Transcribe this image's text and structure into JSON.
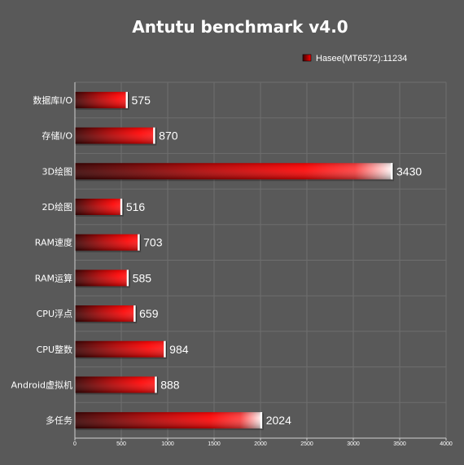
{
  "colors": {
    "background": "#595959",
    "grid": "#6e6e6e",
    "axis": "#cfcfcf",
    "bar_dark": "#3a0000",
    "bar_mid": "#ff0000",
    "bar_light": "#ffffff",
    "text": "#ffffff"
  },
  "chart_data": {
    "type": "bar",
    "orientation": "horizontal",
    "title": "Antutu benchmark v4.0",
    "legend": {
      "entries": [
        "Hasee(MT6572):11234"
      ],
      "placement": "top-right"
    },
    "categories": [
      "数据库I/O",
      "存储I/O",
      "3D绘图",
      "2D绘图",
      "RAM速度",
      "RAM运算",
      "CPU浮点",
      "CPU整数",
      "Android虚拟机",
      "多任务"
    ],
    "series": [
      {
        "name": "Hasee(MT6572):11234",
        "values": [
          575,
          870,
          3430,
          516,
          703,
          585,
          659,
          984,
          888,
          2024
        ]
      }
    ],
    "value_labels": [
      "575",
      "870",
      "3430",
      "516",
      "703",
      "585",
      "659",
      "984",
      "888",
      "2024"
    ],
    "x_ticks": [
      "0",
      "500",
      "1000",
      "1500",
      "2000",
      "2500",
      "3000",
      "3500",
      "4000"
    ],
    "xlim": [
      0,
      4000
    ],
    "grid": true
  }
}
